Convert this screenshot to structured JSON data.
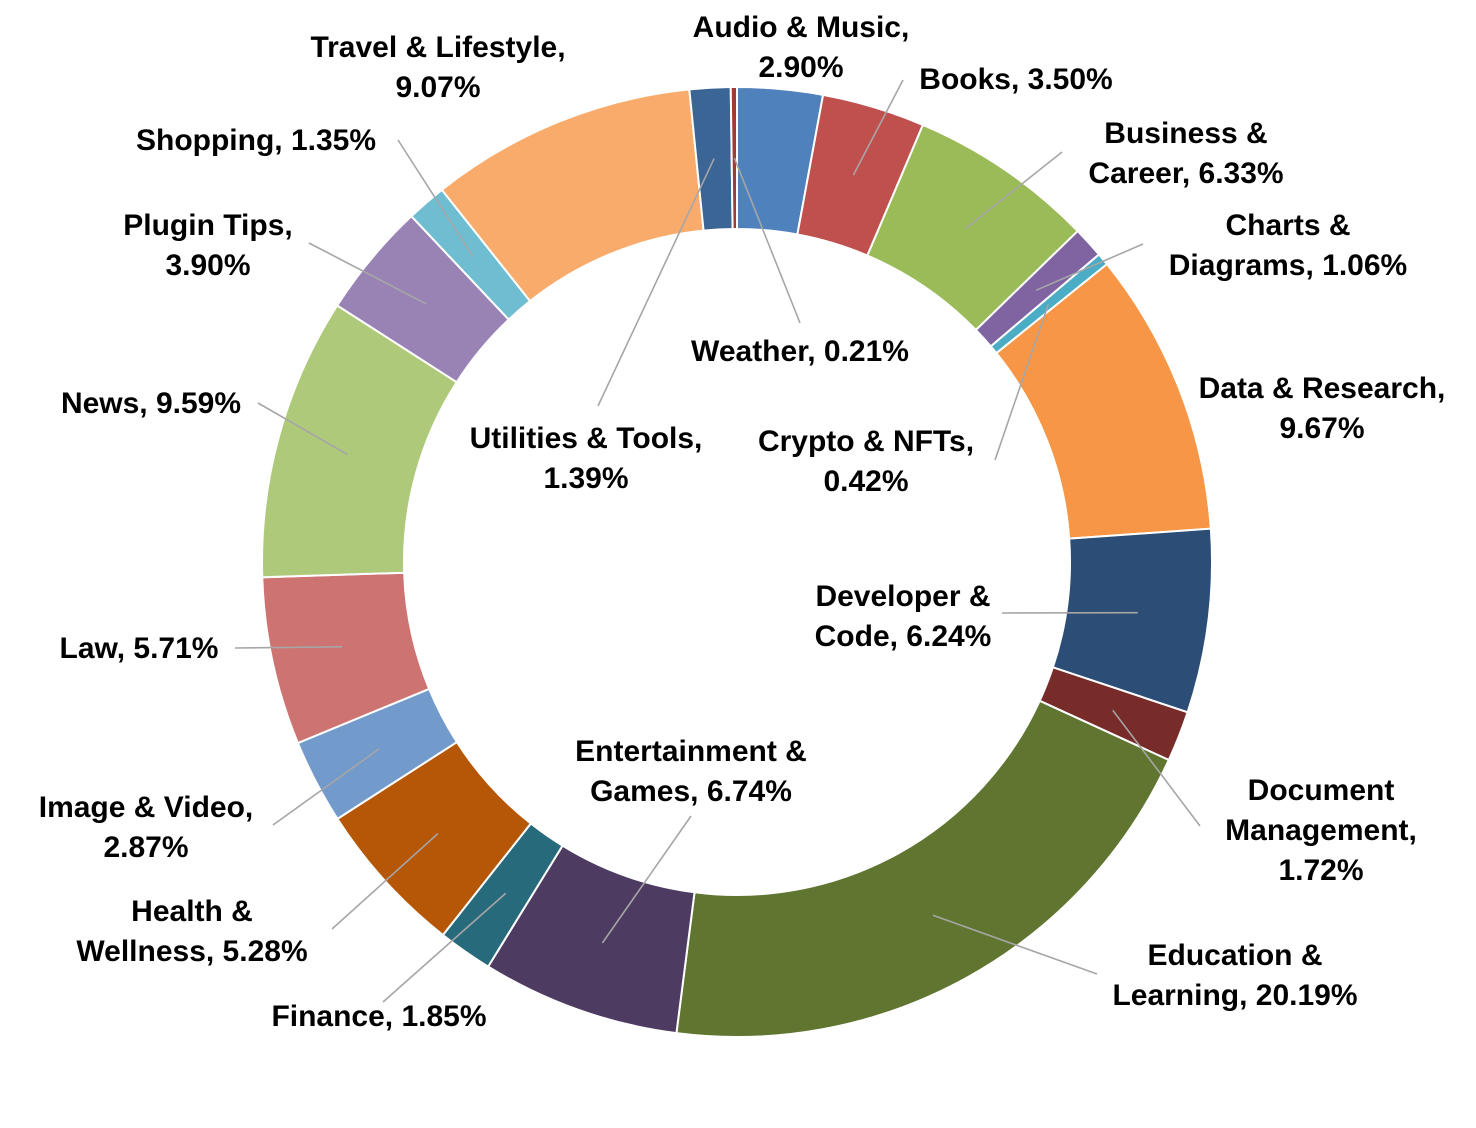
{
  "chart_data": {
    "type": "pie",
    "variant": "donut",
    "title": "",
    "legend": "none",
    "slices": [
      {
        "name": "Audio & Music",
        "value": 2.9,
        "label": "Audio & Music, 2.90%",
        "color": "#4f81bd"
      },
      {
        "name": "Books",
        "value": 3.5,
        "label": "Books, 3.50%",
        "color": "#c0504d"
      },
      {
        "name": "Business & Career",
        "value": 6.33,
        "label": "Business & Career, 6.33%",
        "color": "#9bbb59"
      },
      {
        "name": "Charts & Diagrams",
        "value": 1.06,
        "label": "Charts & Diagrams, 1.06%",
        "color": "#8064a2"
      },
      {
        "name": "Crypto & NFTs",
        "value": 0.42,
        "label": "Crypto & NFTs, 0.42%",
        "color": "#4bacc6"
      },
      {
        "name": "Data & Research",
        "value": 9.67,
        "label": "Data & Research, 9.67%",
        "color": "#f79646"
      },
      {
        "name": "Developer & Code",
        "value": 6.24,
        "label": "Developer & Code, 6.24%",
        "color": "#2c4d75"
      },
      {
        "name": "Document Management",
        "value": 1.72,
        "label": "Document Management, 1.72%",
        "color": "#772c2a"
      },
      {
        "name": "Education & Learning",
        "value": 20.19,
        "label": "Education & Learning, 20.19%",
        "color": "#5f7530"
      },
      {
        "name": "Entertainment & Games",
        "value": 6.74,
        "label": "Entertainment & Games, 6.74%",
        "color": "#4d3b62"
      },
      {
        "name": "Finance",
        "value": 1.85,
        "label": "Finance, 1.85%",
        "color": "#276a7c"
      },
      {
        "name": "Health & Wellness",
        "value": 5.28,
        "label": "Health & Wellness, 5.28%",
        "color": "#b65708"
      },
      {
        "name": "Image & Video",
        "value": 2.87,
        "label": "Image & Video, 2.87%",
        "color": "#729aca"
      },
      {
        "name": "Law",
        "value": 5.71,
        "label": "Law, 5.71%",
        "color": "#cd7371"
      },
      {
        "name": "News",
        "value": 9.59,
        "label": "News, 9.59%",
        "color": "#afc97a"
      },
      {
        "name": "Plugin Tips",
        "value": 3.9,
        "label": "Plugin Tips, 3.90%",
        "color": "#9983b5"
      },
      {
        "name": "Shopping",
        "value": 1.35,
        "label": "Shopping, 1.35%",
        "color": "#6fbdd1"
      },
      {
        "name": "Travel & Lifestyle",
        "value": 9.07,
        "label": "Travel & Lifestyle, 9.07%",
        "color": "#f9ab6b"
      },
      {
        "name": "Utilities & Tools",
        "value": 1.39,
        "label": "Utilities & Tools, 1.39%",
        "color": "#3a6595"
      },
      {
        "name": "Weather",
        "value": 0.21,
        "label": "Weather, 0.21%",
        "color": "#9c3b38"
      }
    ]
  }
}
